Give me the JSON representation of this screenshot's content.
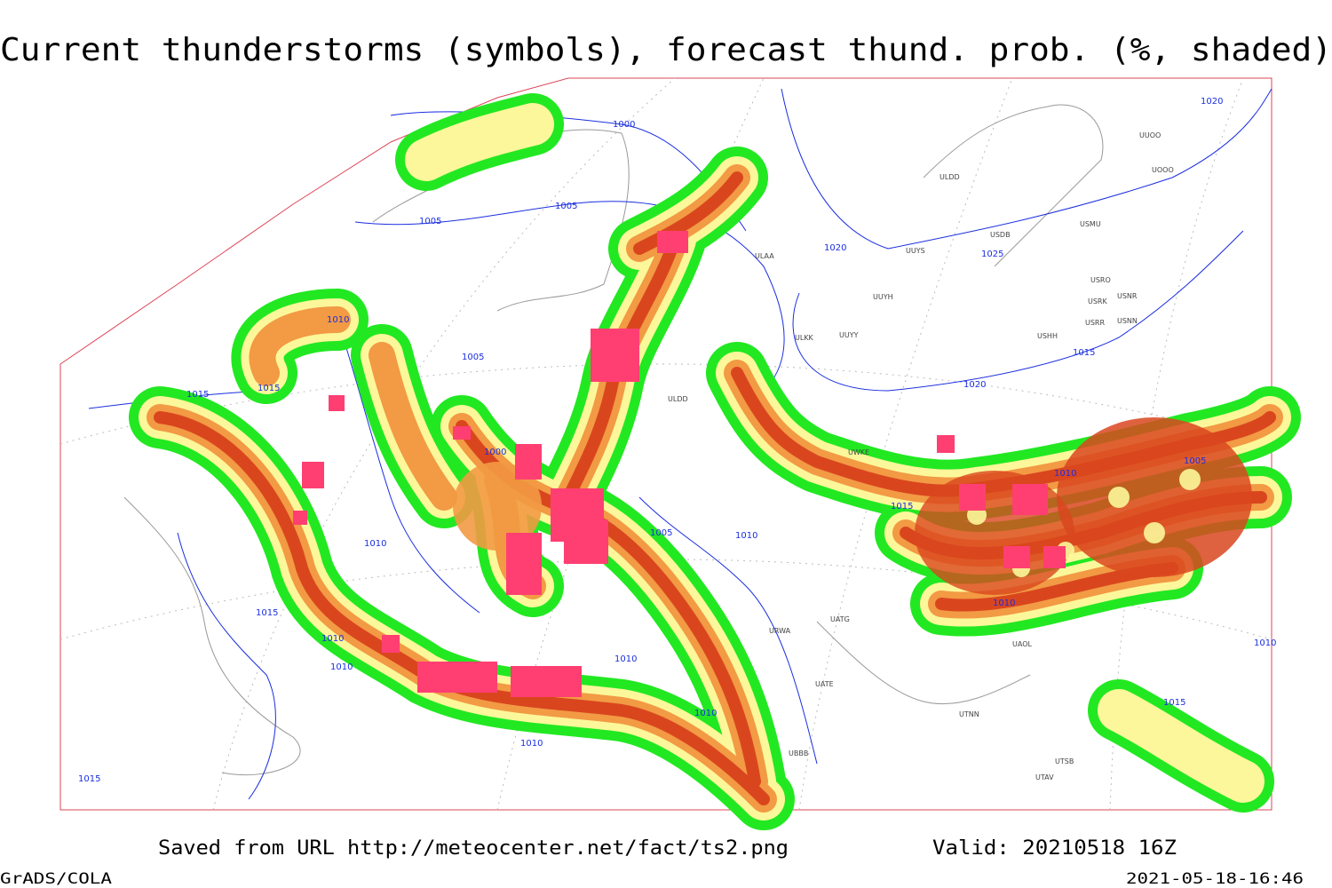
{
  "header": {
    "title": "Current thunderstorms (symbols), forecast thund. prob. (%, shaded)"
  },
  "isobar_labels": [
    "1000",
    "1005",
    "1005",
    "1005",
    "1010",
    "1015",
    "1015",
    "1000",
    "1010",
    "1005",
    "1010",
    "1020",
    "1025",
    "1020",
    "1020",
    "1015",
    "1010",
    "1015",
    "1005",
    "1010",
    "1010",
    "1015",
    "1010",
    "1010",
    "1010",
    "1010",
    "1010",
    "1015",
    "1015"
  ],
  "station_labels": [
    "ULDD",
    "USDB",
    "USMU",
    "UUYS",
    "UUYH",
    "UUYY",
    "ULKK",
    "USHH",
    "USRO",
    "USRK",
    "USNR",
    "USRR",
    "USNN",
    "ULAA",
    "UWKE",
    "UATG",
    "UATE",
    "UTNN",
    "UAOL",
    "UTSB",
    "UTAV",
    "UBBB",
    "URWA",
    "UUOO",
    "UOOO",
    "ULDD"
  ],
  "footer": {
    "source": "Saved from URL http://meteocenter.net/fact/ts2.png",
    "valid": "Valid: 20210518 16Z",
    "software": "GrADS/COLA",
    "timestamp": "2021-05-18-16:46"
  }
}
